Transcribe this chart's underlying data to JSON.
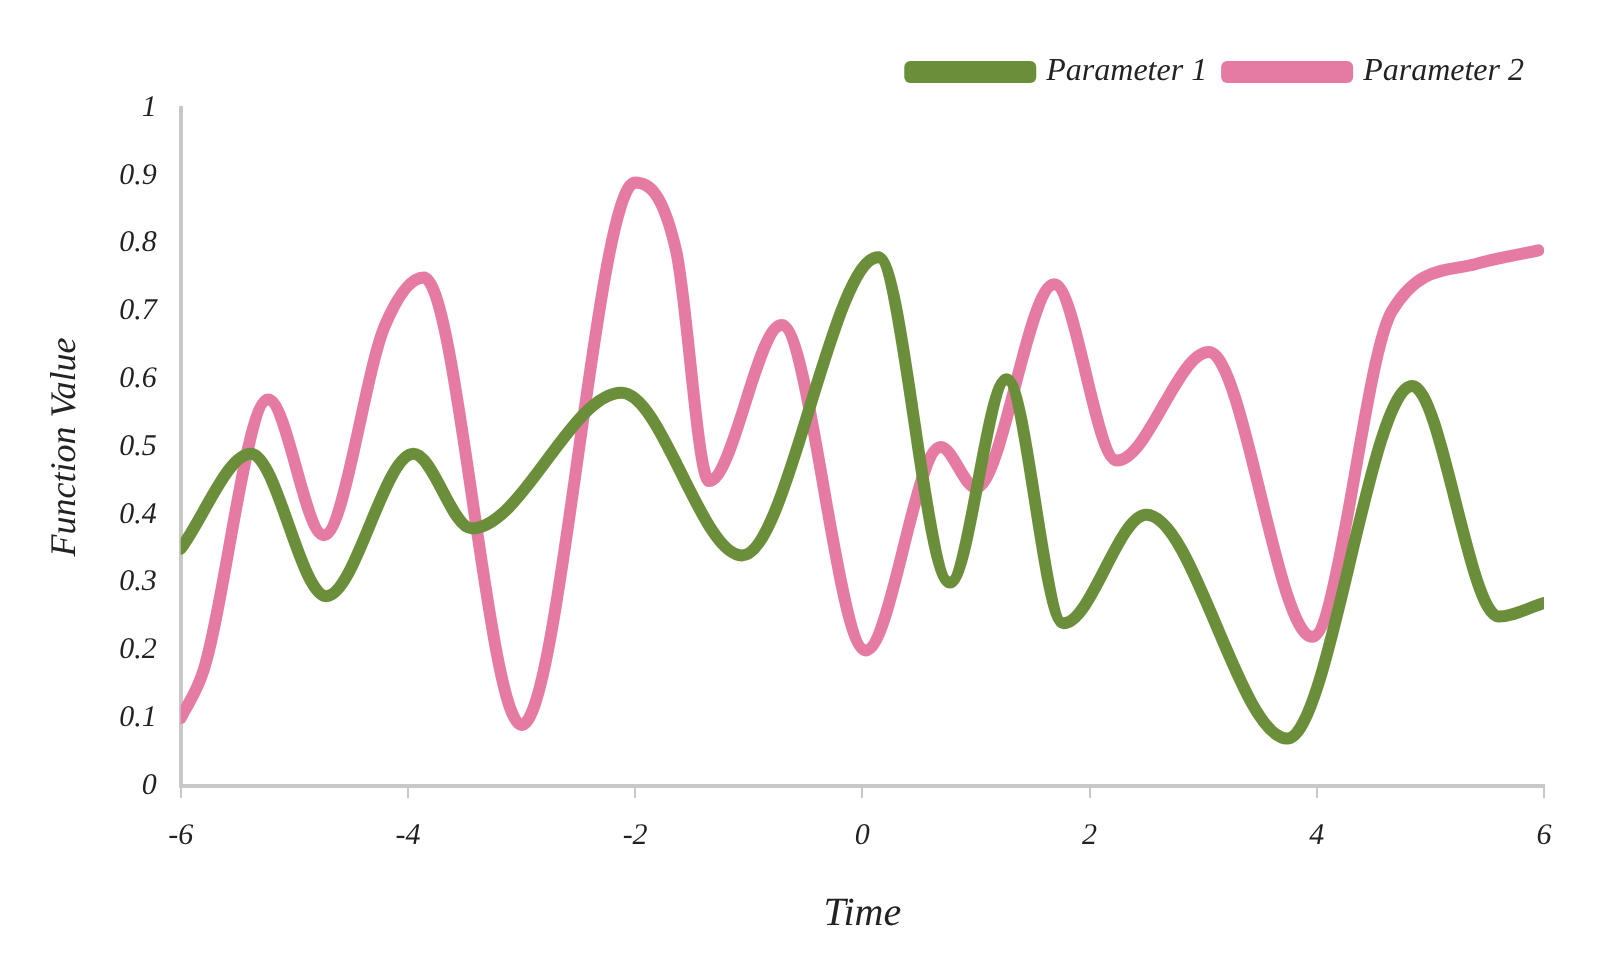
{
  "chart_data": {
    "type": "line",
    "xlabel": "Time",
    "ylabel": "Function Value",
    "xlim": [
      -6,
      6
    ],
    "xticks": [
      -6,
      -4,
      -2,
      0,
      2,
      4,
      6
    ],
    "ylim": [
      0,
      1
    ],
    "yticks": [
      0,
      0.1,
      0.2,
      0.3,
      0.4,
      0.5,
      0.6,
      0.7,
      0.8,
      0.9,
      1
    ],
    "grid": false,
    "legend": "top right",
    "marker": "none",
    "line_style": "solid",
    "series": [
      {
        "name": "Parameter 1",
        "color": "#6b8e3a",
        "x": [
          -6,
          -5.38,
          -4.72,
          -3.95,
          -3.44,
          -2.12,
          -1.06,
          0.14,
          0.77,
          1.27,
          1.77,
          2.5,
          3.74,
          4.84,
          5.6,
          6
        ],
        "values": [
          0.35,
          0.49,
          0.28,
          0.49,
          0.38,
          0.58,
          0.34,
          0.78,
          0.3,
          0.6,
          0.24,
          0.4,
          0.07,
          0.59,
          0.25,
          0.27
        ]
      },
      {
        "name": "Parameter 2",
        "color": "#e57ba3",
        "x": [
          -6,
          -5.8,
          -5.23,
          -4.74,
          -4.2,
          -3.86,
          -3,
          -2,
          -1.64,
          -1.35,
          -0.71,
          0.03,
          0.69,
          1,
          1.69,
          2.24,
          3.05,
          3.96,
          4.66,
          5.4,
          5.95
        ],
        "values": [
          0.1,
          0.17,
          0.57,
          0.37,
          0.68,
          0.75,
          0.09,
          0.89,
          0.79,
          0.45,
          0.68,
          0.2,
          0.5,
          0.44,
          0.74,
          0.48,
          0.64,
          0.22,
          0.7,
          0.77,
          0.79
        ]
      }
    ]
  }
}
